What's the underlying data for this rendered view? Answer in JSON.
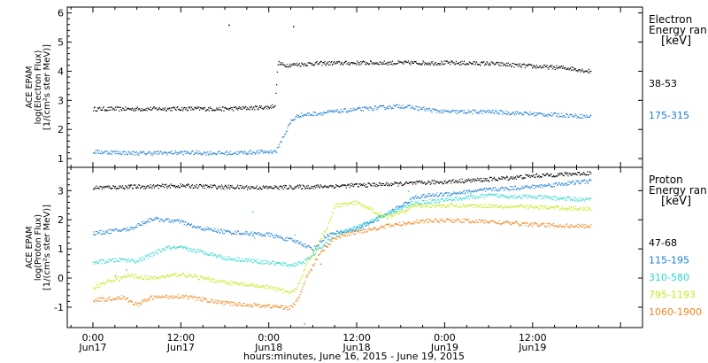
{
  "chart_data": [
    {
      "type": "scatter",
      "panel": "electron",
      "ylabel_lines": [
        "ACE EPAM",
        "log(Electron Flux)",
        "[1/(cm²s ster MeV)]"
      ],
      "legend_title": [
        "Electron",
        "Energy ran",
        "[keV]"
      ],
      "ylim": [
        0.7,
        6.2
      ],
      "yticks": [
        1,
        2,
        3,
        4,
        5,
        6
      ],
      "series": [
        {
          "name": "38-53",
          "color": "#000000",
          "points": [
            [
              0,
              2.72
            ],
            [
              6,
              2.72
            ],
            [
              12,
              2.73
            ],
            [
              18,
              2.72
            ],
            [
              24,
              2.78
            ],
            [
              24.8,
              2.85
            ],
            [
              25.2,
              4.3
            ],
            [
              26,
              4.22
            ],
            [
              30,
              4.28
            ],
            [
              36,
              4.3
            ],
            [
              42,
              4.3
            ],
            [
              48,
              4.3
            ],
            [
              54,
              4.28
            ],
            [
              60,
              4.18
            ],
            [
              65,
              4.12
            ],
            [
              68,
              4.0
            ]
          ],
          "extra_points": [
            [
              18.5,
              5.6
            ],
            [
              27.3,
              5.55
            ]
          ]
        },
        {
          "name": "175-315",
          "color": "#1a7fd6",
          "points": [
            [
              0,
              1.25
            ],
            [
              6,
              1.2
            ],
            [
              12,
              1.22
            ],
            [
              18,
              1.2
            ],
            [
              24,
              1.25
            ],
            [
              25,
              1.28
            ],
            [
              26,
              1.8
            ],
            [
              27,
              2.3
            ],
            [
              28,
              2.5
            ],
            [
              30,
              2.55
            ],
            [
              36,
              2.7
            ],
            [
              42,
              2.82
            ],
            [
              48,
              2.62
            ],
            [
              54,
              2.62
            ],
            [
              60,
              2.55
            ],
            [
              65,
              2.5
            ],
            [
              68,
              2.45
            ]
          ],
          "extra_points": []
        }
      ]
    },
    {
      "type": "scatter",
      "panel": "proton",
      "ylabel_lines": [
        "ACE EPAM",
        "log(Proton Flux)",
        "[1/(cm²s ster MeV)]"
      ],
      "legend_title": [
        "Proton",
        "Energy ran",
        "[keV]"
      ],
      "ylim": [
        -1.7,
        3.8
      ],
      "yticks": [
        -1,
        0,
        1,
        2,
        3
      ],
      "xlabel": "hours:minutes, June 16, 2015 - June 19, 2015",
      "xlim": [
        -3.5,
        75
      ],
      "xticks": [
        {
          "h": 0,
          "time": "0:00",
          "date": "Jun17"
        },
        {
          "h": 12,
          "time": "12:00",
          "date": "Jun17"
        },
        {
          "h": 24,
          "time": "0:00",
          "date": "Jun18"
        },
        {
          "h": 36,
          "time": "12:00",
          "date": "Jun18"
        },
        {
          "h": 48,
          "time": "0:00",
          "date": "Jun19"
        },
        {
          "h": 60,
          "time": "12:00",
          "date": "Jun19"
        }
      ],
      "series": [
        {
          "name": "47-68",
          "color": "#000000",
          "points": [
            [
              0,
              3.12
            ],
            [
              6,
              3.15
            ],
            [
              12,
              3.18
            ],
            [
              18,
              3.14
            ],
            [
              24,
              3.12
            ],
            [
              30,
              3.15
            ],
            [
              36,
              3.2
            ],
            [
              42,
              3.25
            ],
            [
              48,
              3.32
            ],
            [
              54,
              3.4
            ],
            [
              60,
              3.52
            ],
            [
              66,
              3.6
            ],
            [
              68,
              3.62
            ]
          ],
          "extra_points": [
            [
              5,
              3.2
            ]
          ]
        },
        {
          "name": "115-195",
          "color": "#1a7fd6",
          "points": [
            [
              0,
              1.55
            ],
            [
              5,
              1.7
            ],
            [
              8,
              2.05
            ],
            [
              12,
              1.95
            ],
            [
              14,
              1.75
            ],
            [
              18,
              1.6
            ],
            [
              24,
              1.5
            ],
            [
              28,
              1.25
            ],
            [
              30,
              1.0
            ],
            [
              32,
              1.5
            ],
            [
              36,
              1.7
            ],
            [
              40,
              2.2
            ],
            [
              44,
              2.8
            ],
            [
              48,
              2.9
            ],
            [
              54,
              3.05
            ],
            [
              60,
              3.15
            ],
            [
              66,
              3.3
            ],
            [
              68,
              3.35
            ]
          ],
          "extra_points": []
        },
        {
          "name": "310-580",
          "color": "#2fd7cf",
          "points": [
            [
              0,
              0.55
            ],
            [
              4,
              0.65
            ],
            [
              6,
              0.6
            ],
            [
              10,
              1.05
            ],
            [
              12,
              1.05
            ],
            [
              16,
              0.85
            ],
            [
              18,
              0.7
            ],
            [
              24,
              0.55
            ],
            [
              27,
              0.45
            ],
            [
              29,
              0.6
            ],
            [
              33,
              1.5
            ],
            [
              36,
              1.75
            ],
            [
              40,
              2.2
            ],
            [
              44,
              2.6
            ],
            [
              48,
              2.7
            ],
            [
              54,
              2.85
            ],
            [
              60,
              2.8
            ],
            [
              66,
              2.72
            ],
            [
              68,
              2.7
            ]
          ],
          "extra_points": [
            [
              21.7,
              2.3
            ],
            [
              22,
              1.4
            ],
            [
              27.5,
              1.5
            ],
            [
              43,
              3.0
            ]
          ]
        },
        {
          "name": "795-1193",
          "color": "#c6ea1c",
          "points": [
            [
              0,
              -0.3
            ],
            [
              2,
              -0.1
            ],
            [
              5,
              0.1
            ],
            [
              8,
              0.0
            ],
            [
              12,
              0.15
            ],
            [
              16,
              -0.05
            ],
            [
              20,
              -0.2
            ],
            [
              24,
              -0.3
            ],
            [
              27,
              -0.5
            ],
            [
              28,
              -0.2
            ],
            [
              29,
              0.4
            ],
            [
              32,
              1.8
            ],
            [
              33,
              2.5
            ],
            [
              36,
              2.6
            ],
            [
              40,
              2.1
            ],
            [
              44,
              2.5
            ],
            [
              48,
              2.5
            ],
            [
              54,
              2.5
            ],
            [
              60,
              2.45
            ],
            [
              66,
              2.4
            ],
            [
              68,
              2.4
            ]
          ],
          "extra_points": []
        },
        {
          "name": "1060-1900",
          "color": "#f0861c",
          "points": [
            [
              0,
              -0.75
            ],
            [
              4,
              -0.65
            ],
            [
              6,
              -0.9
            ],
            [
              8,
              -0.65
            ],
            [
              12,
              -0.6
            ],
            [
              18,
              -0.85
            ],
            [
              24,
              -0.95
            ],
            [
              27,
              -1.0
            ],
            [
              28,
              -0.7
            ],
            [
              29,
              0.0
            ],
            [
              31,
              0.9
            ],
            [
              33,
              1.4
            ],
            [
              36,
              1.6
            ],
            [
              40,
              1.8
            ],
            [
              44,
              1.95
            ],
            [
              48,
              2.0
            ],
            [
              54,
              1.95
            ],
            [
              60,
              1.85
            ],
            [
              66,
              1.8
            ],
            [
              68,
              1.8
            ]
          ],
          "extra_points": [
            [
              3,
              0.1
            ],
            [
              4.5,
              0.3
            ],
            [
              28.8,
              -1.55
            ],
            [
              31,
              0.5
            ]
          ]
        }
      ]
    }
  ]
}
